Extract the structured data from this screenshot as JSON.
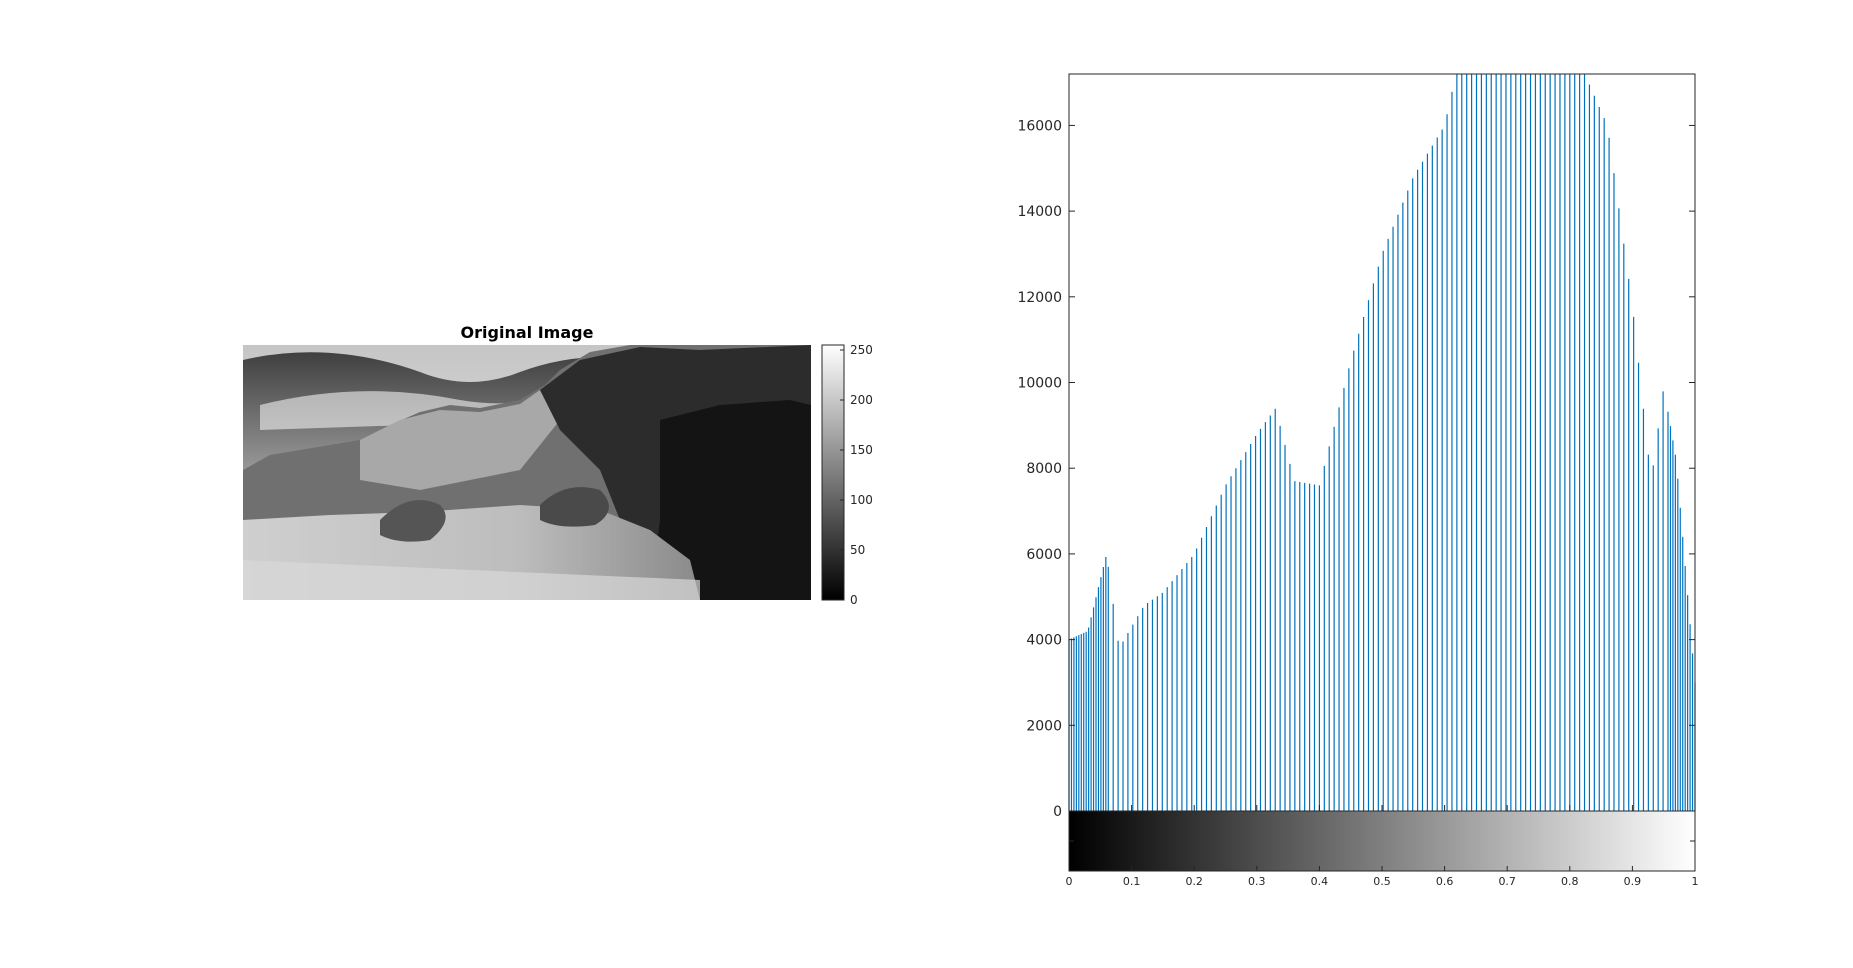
{
  "chart_data": [
    {
      "type": "image",
      "title": "Original Image",
      "colorbar": {
        "orientation": "vertical",
        "range": [
          0,
          255
        ],
        "ticks": [
          0,
          50,
          100,
          150,
          200,
          250
        ],
        "tick_labels": [
          "0",
          "50",
          "100",
          "150",
          "200",
          "250"
        ]
      }
    },
    {
      "type": "bar",
      "title": "",
      "xlabel": "",
      "ylabel": "",
      "xlim": [
        0,
        1
      ],
      "ylim": [
        0,
        17200
      ],
      "grid": false,
      "bar_color": "#0072BD",
      "y_ticks": [
        0,
        2000,
        4000,
        6000,
        8000,
        10000,
        12000,
        14000,
        16000
      ],
      "y_tick_labels": [
        "0",
        "2000",
        "4000",
        "6000",
        "8000",
        "10000",
        "12000",
        "14000",
        "16000"
      ],
      "x_ticks": [
        0,
        0.1,
        0.2,
        0.3,
        0.4,
        0.5,
        0.6,
        0.7,
        0.8,
        0.9,
        1
      ],
      "x_tick_labels": [
        "0",
        "0.1",
        "0.2",
        "0.3",
        "0.4",
        "0.5",
        "0.6",
        "0.7",
        "0.8",
        "0.9",
        "1"
      ],
      "colorbar": {
        "orientation": "horizontal",
        "range": [
          0,
          1
        ]
      },
      "bins": 256,
      "values": []
    }
  ]
}
